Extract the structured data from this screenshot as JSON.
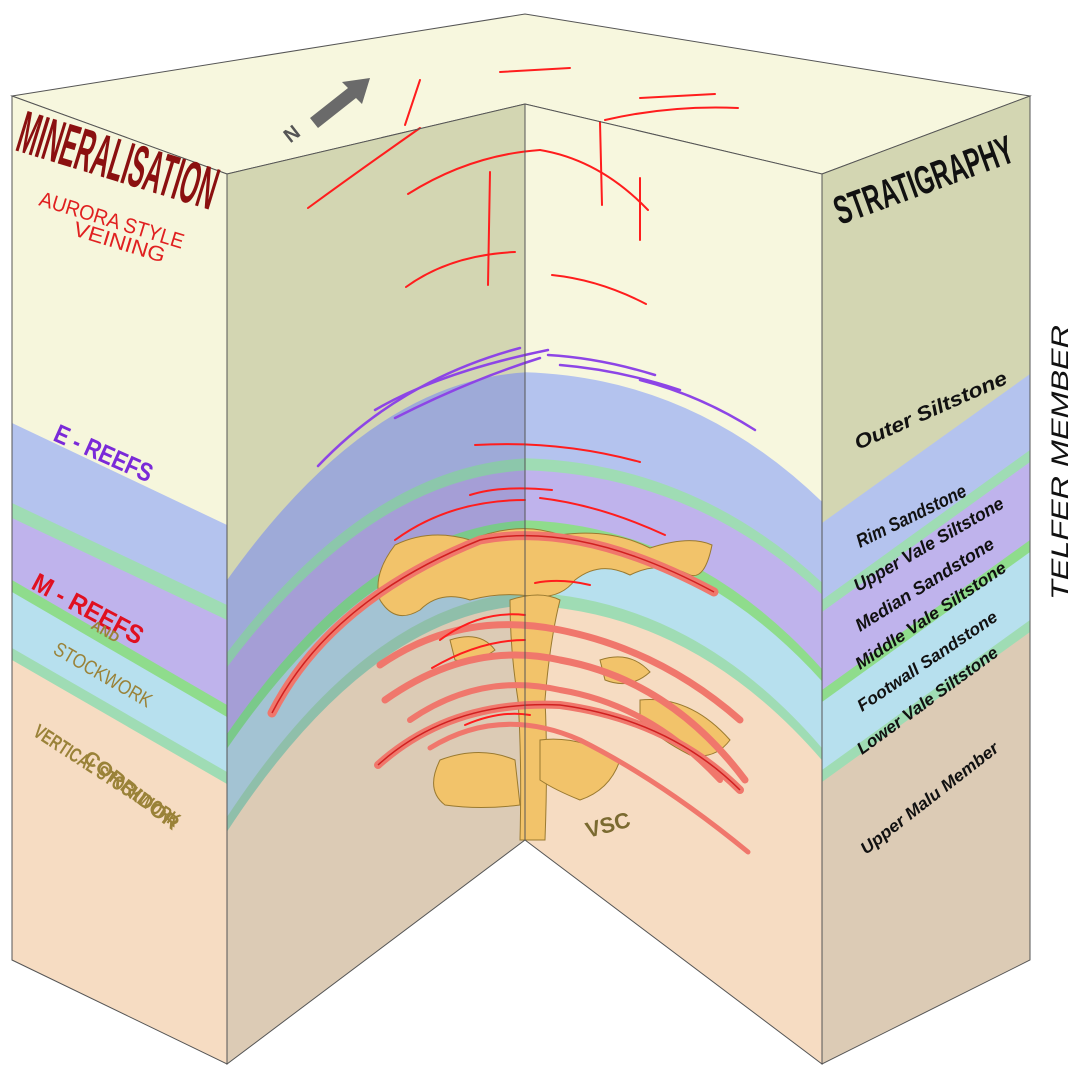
{
  "colors": {
    "outer_siltstone": "#d3d6b2",
    "outer_siltstone_light": "#f6f6dc",
    "rim_sandstone": "#b4c3ee",
    "siltstone_green": "#9fdcb4",
    "median_sandstone": "#bfb3ec",
    "middle_vale_green": "#8fdc8c",
    "footwall_sandstone": "#b7e0ee",
    "upper_malu": "#f6dcc2",
    "vein_red": "#ff1d1d",
    "reef_red": "#f0776c",
    "ereef_purple": "#8d45e6",
    "stockwork_gold": "#f2c36a",
    "mineralisation_title": "#8b1010",
    "ereefs_label": "#7a2ad8",
    "mreefs_label": "#e01020",
    "stockwork_label": "#9a8238"
  },
  "north_arrow": {
    "icon": "north-arrow-icon",
    "label": "N"
  },
  "left_face": {
    "title": "MINERALISATION",
    "aurora_line1": "AURORA STYLE",
    "aurora_line2": "VEINING",
    "ereefs": "E - REEFS",
    "mreefs": "M - REEFS",
    "and": "AND",
    "stockwork": "STOCKWORK",
    "vertical_line1": "VERTICAL STOCKWORK",
    "vertical_line2": "CORRIDOR"
  },
  "right_face": {
    "title": "STRATIGRAPHY",
    "layers": [
      "Outer Siltstone",
      "Rim Sandstone",
      "Upper Vale Siltstone",
      "Median Sandstone",
      "Middle Vale Siltstone",
      "Footwall Sandstone",
      "Lower Vale Siltstone",
      "Upper Malu Member"
    ],
    "member_label": "TELFER MEMBER"
  },
  "vsc_label": "VSC"
}
